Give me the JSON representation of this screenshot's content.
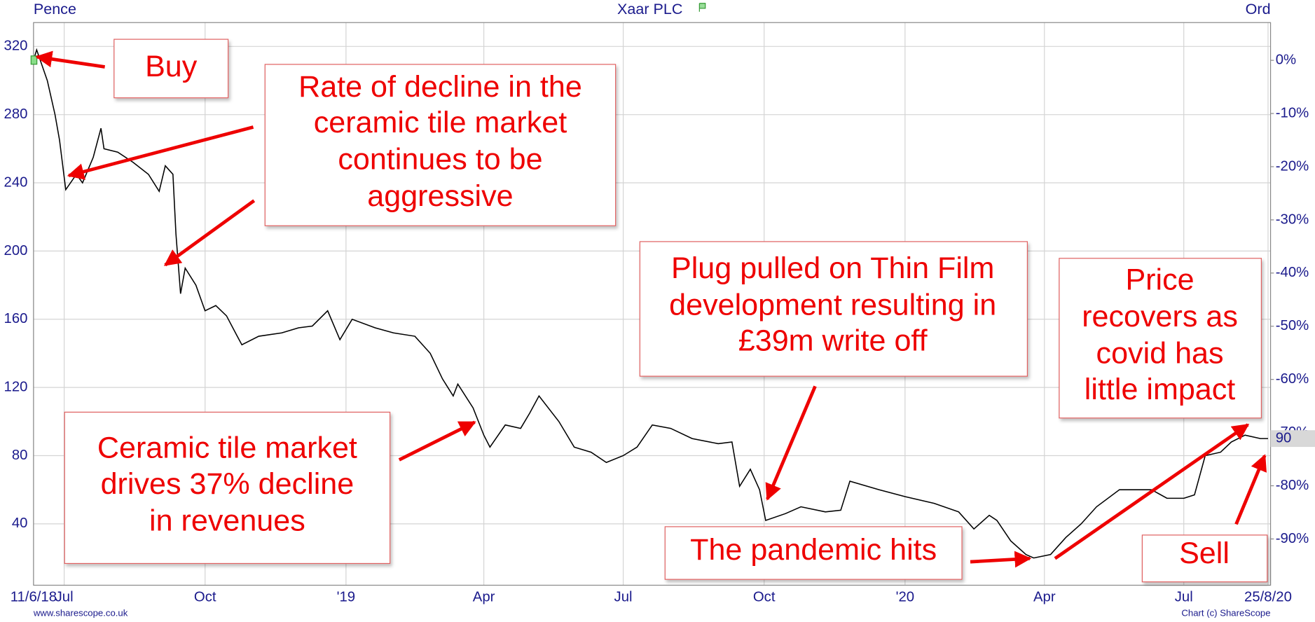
{
  "chart_data": {
    "type": "line",
    "title": "Xaar PLC",
    "y_label": "Pence",
    "y2_label": "Ord",
    "source": "www.sharescope.co.uk",
    "credit": "Chart (c) ShareScope",
    "color": "#000000",
    "grid": true,
    "xlim": [
      "2018-06-11",
      "2020-08-25"
    ],
    "xticks": [
      {
        "value": "2018-06-11",
        "label": "11/6/18"
      },
      {
        "value": "2018-07-01",
        "label": "Jul"
      },
      {
        "value": "2018-10-01",
        "label": "Oct"
      },
      {
        "value": "2019-01-01",
        "label": "'19"
      },
      {
        "value": "2019-04-01",
        "label": "Apr"
      },
      {
        "value": "2019-07-01",
        "label": "Jul"
      },
      {
        "value": "2019-10-01",
        "label": "Oct"
      },
      {
        "value": "2020-01-01",
        "label": "'20"
      },
      {
        "value": "2020-04-01",
        "label": "Apr"
      },
      {
        "value": "2020-07-01",
        "label": "Jul"
      },
      {
        "value": "2020-08-25",
        "label": "25/8/20"
      }
    ],
    "ylim": [
      4,
      334
    ],
    "yticks": [
      40,
      80,
      120,
      160,
      200,
      240,
      280,
      320
    ],
    "y2lim": [
      -98.7,
      7.1
    ],
    "y2ticks": [
      {
        "value": 0,
        "label": "0%"
      },
      {
        "value": -10,
        "label": "-10%"
      },
      {
        "value": -20,
        "label": "-20%"
      },
      {
        "value": -30,
        "label": "-30%"
      },
      {
        "value": -40,
        "label": "-40%"
      },
      {
        "value": -50,
        "label": "-50%"
      },
      {
        "value": -60,
        "label": "-60%"
      },
      {
        "value": -70,
        "label": "-70%"
      },
      {
        "value": -80,
        "label": "-80%"
      },
      {
        "value": -90,
        "label": "-90%"
      }
    ],
    "last_price": {
      "value": 90,
      "label": "90"
    },
    "x": [
      "2018-06-11",
      "2018-06-13",
      "2018-06-20",
      "2018-06-25",
      "2018-06-28",
      "2018-07-02",
      "2018-07-09",
      "2018-07-13",
      "2018-07-20",
      "2018-07-25",
      "2018-07-27",
      "2018-08-05",
      "2018-08-15",
      "2018-08-25",
      "2018-09-01",
      "2018-09-05",
      "2018-09-10",
      "2018-09-12",
      "2018-09-15",
      "2018-09-18",
      "2018-09-25",
      "2018-10-01",
      "2018-10-08",
      "2018-10-15",
      "2018-10-22",
      "2018-10-25",
      "2018-11-05",
      "2018-11-20",
      "2018-12-01",
      "2018-12-10",
      "2018-12-20",
      "2018-12-28",
      "2019-01-05",
      "2019-01-20",
      "2019-02-01",
      "2019-02-15",
      "2019-02-25",
      "2019-03-05",
      "2019-03-12",
      "2019-03-15",
      "2019-03-25",
      "2019-04-01",
      "2019-04-05",
      "2019-04-15",
      "2019-04-25",
      "2019-05-01",
      "2019-05-07",
      "2019-05-20",
      "2019-05-30",
      "2019-06-10",
      "2019-06-20",
      "2019-07-01",
      "2019-07-10",
      "2019-07-20",
      "2019-08-01",
      "2019-08-15",
      "2019-09-01",
      "2019-09-10",
      "2019-09-15",
      "2019-09-22",
      "2019-09-28",
      "2019-10-02",
      "2019-10-15",
      "2019-10-25",
      "2019-11-10",
      "2019-11-20",
      "2019-11-26",
      "2019-12-15",
      "2020-01-01",
      "2020-01-20",
      "2020-02-05",
      "2020-02-15",
      "2020-02-25",
      "2020-03-01",
      "2020-03-10",
      "2020-03-20",
      "2020-03-25",
      "2020-04-05",
      "2020-04-15",
      "2020-04-25",
      "2020-05-05",
      "2020-05-20",
      "2020-06-10",
      "2020-06-20",
      "2020-07-01",
      "2020-07-08",
      "2020-07-15",
      "2020-07-25",
      "2020-08-01",
      "2020-08-10",
      "2020-08-20",
      "2020-08-25"
    ],
    "values": [
      312,
      318,
      300,
      280,
      265,
      236,
      245,
      240,
      255,
      272,
      260,
      258,
      252,
      245,
      235,
      250,
      245,
      210,
      175,
      190,
      180,
      165,
      168,
      162,
      150,
      145,
      150,
      152,
      155,
      156,
      165,
      148,
      160,
      155,
      152,
      150,
      140,
      125,
      115,
      122,
      108,
      92,
      85,
      98,
      96,
      105,
      115,
      100,
      85,
      82,
      76,
      80,
      85,
      98,
      96,
      90,
      87,
      88,
      62,
      72,
      60,
      42,
      46,
      50,
      47,
      48,
      65,
      60,
      56,
      52,
      47,
      37,
      45,
      42,
      30,
      22,
      20,
      22,
      32,
      40,
      50,
      60,
      60,
      55,
      55,
      57,
      80,
      82,
      88,
      92,
      90,
      90
    ],
    "annotations": [
      {
        "text": [
          "Buy"
        ]
      },
      {
        "text": [
          "Rate of decline in the",
          "ceramic tile market",
          "continues to be",
          "aggressive"
        ]
      },
      {
        "text": [
          "Ceramic tile market",
          "drives 37% decline",
          "in revenues"
        ]
      },
      {
        "text": [
          "Plug pulled on Thin Film",
          "development resulting in",
          "£39m write off"
        ]
      },
      {
        "text": [
          "The pandemic hits"
        ]
      },
      {
        "text": [
          "Price",
          "recovers as",
          "covid has",
          "little impact"
        ]
      },
      {
        "text": [
          "Sell"
        ]
      }
    ]
  }
}
